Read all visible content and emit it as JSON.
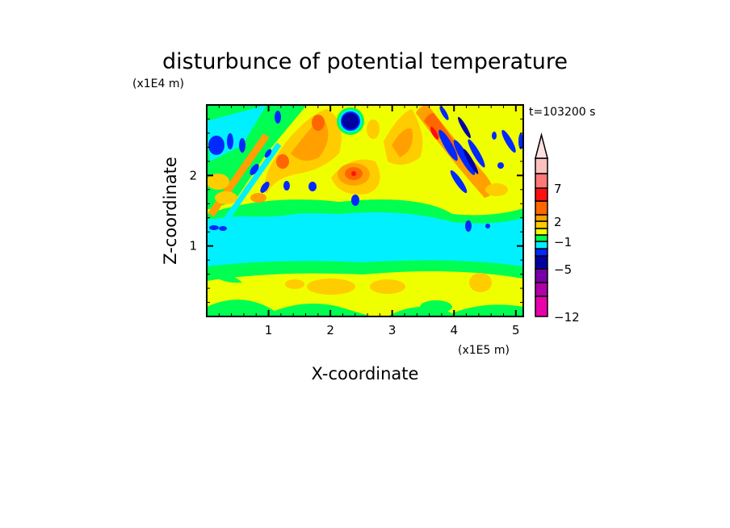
{
  "chart_data": {
    "type": "heatmap",
    "subtype": "filled-contour",
    "title": "disturbunce of potential temperature",
    "xlabel": "X-coordinate",
    "ylabel": "Z-coordinate",
    "x_scale_label": "(x1E5 m)",
    "y_scale_label": "(x1E4 m)",
    "time_label": "t=103200 s",
    "xlim": [
      0,
      5.12
    ],
    "ylim": [
      0,
      3.0
    ],
    "x_ticks": [
      1,
      2,
      3,
      4,
      5
    ],
    "y_ticks": [
      1,
      2
    ],
    "x_tick_labels": [
      "1",
      "2",
      "3",
      "4",
      "5"
    ],
    "y_tick_labels": [
      "1",
      "2"
    ],
    "colorbar": {
      "levels": [
        -12,
        -9,
        -7,
        -5,
        -3,
        -2,
        -1,
        0,
        1,
        2,
        3,
        5,
        7,
        9,
        12
      ],
      "labeled_levels": [
        -12,
        -5,
        -1,
        2,
        7
      ],
      "tick_labels": [
        "-12",
        "−5",
        "−1",
        "2",
        "7"
      ],
      "colors": [
        "#e800aa",
        "#b000a8",
        "#7800a8",
        "#0000a0",
        "#0028ff",
        "#00f0ff",
        "#00ff50",
        "#f0ff00",
        "#ffcc00",
        "#ffa000",
        "#ff6600",
        "#ff1010",
        "#ff7878",
        "#ffc0c0"
      ],
      "extend_max_color": "#ffe0e0"
    },
    "field_colors": {
      "cyan": "#00f0ff",
      "green": "#00ff50",
      "yellow": "#f0ff00",
      "lightorange": "#ffcc00",
      "orange": "#ffa000",
      "darkorange": "#ff6600",
      "red": "#ff1010",
      "blue": "#0028ff",
      "navy": "#0000a0"
    }
  }
}
